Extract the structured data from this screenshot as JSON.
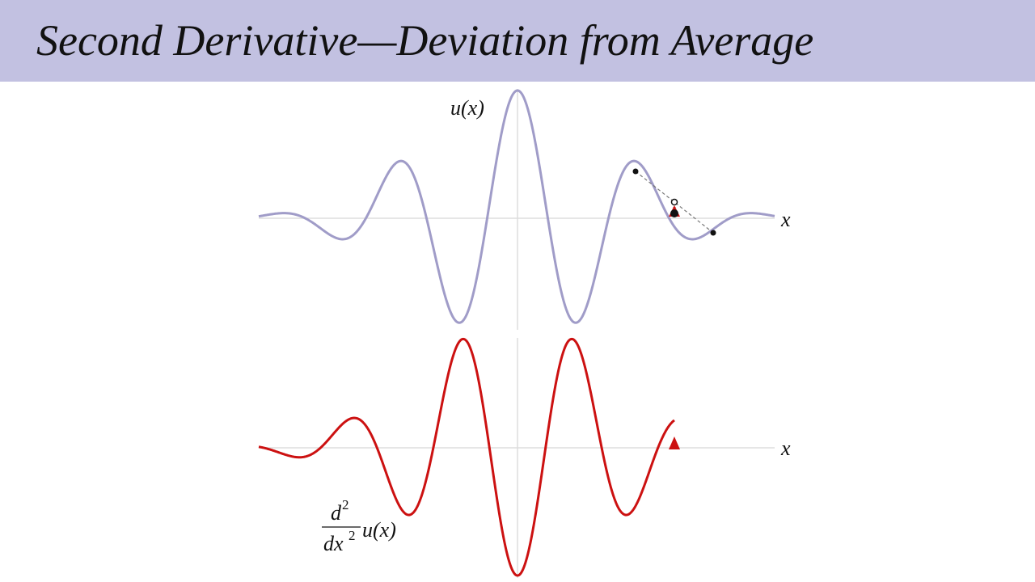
{
  "title": "Second Derivative—Deviation from Average",
  "top_graph": {
    "function_label": "u(x)",
    "axis_label": "x"
  },
  "bottom_graph": {
    "function_label": {
      "numerator": "d",
      "numerator_power": "2",
      "denominator": "dx",
      "denominator_power": "2",
      "argument": "u(x)"
    },
    "axis_label": "x"
  }
}
